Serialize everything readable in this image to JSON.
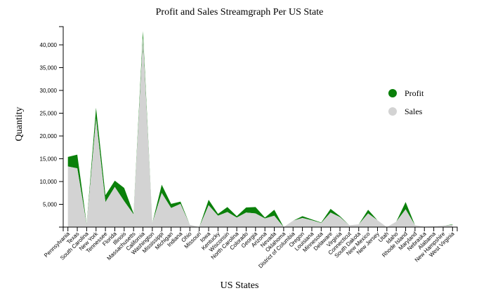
{
  "chart_data": {
    "type": "area",
    "title": "Profit and Sales Streamgraph Per US State",
    "xlabel": "US States",
    "ylabel": "Quantity",
    "ylim": [
      0,
      44000
    ],
    "yticks": [
      5000,
      10000,
      15000,
      20000,
      25000,
      30000,
      35000,
      40000
    ],
    "ytick_labels": [
      "5,000",
      "10,000",
      "15,000",
      "20,000",
      "25,000",
      "30,000",
      "35,000",
      "40,000"
    ],
    "grid": false,
    "legend_position": "right",
    "colors": {
      "Profit": "#0a800a",
      "Sales": "#d3d3d3"
    },
    "categories": [
      "Pennsylvania",
      "Texas",
      "South Carolina",
      "New York",
      "Tennessee",
      "Florida",
      "Illinois",
      "Massachusetts",
      "California",
      "Washington",
      "Mississippi",
      "Michigan",
      "Indiana",
      "Ohio",
      "Missouri",
      "Iowa",
      "Kentucky",
      "Wisconsin",
      "North Carolina",
      "Colorado",
      "Georgia",
      "Arizona",
      "Nevada",
      "Oklahoma",
      "District of Columbia",
      "Oregon",
      "Louisiana",
      "Minnesota",
      "Delaware",
      "Virginia",
      "Connecticut",
      "South Dakota",
      "New Mexico",
      "New Jersey",
      "Utah",
      "Idaho",
      "Rhode Island",
      "Maryland",
      "Nebraska",
      "Alabama",
      "New Hampshire",
      "West Virginia"
    ],
    "series": [
      {
        "name": "Sales",
        "values": [
          13300,
          12900,
          600,
          23800,
          5500,
          8800,
          5700,
          2800,
          41500,
          900,
          7500,
          4200,
          5100,
          500,
          0,
          4800,
          2500,
          3300,
          2100,
          3200,
          3000,
          1900,
          2500,
          0,
          1400,
          2000,
          1500,
          900,
          3200,
          2200,
          400,
          600,
          3000,
          1500,
          0,
          1200,
          3900,
          400,
          100,
          200,
          300,
          500
        ]
      },
      {
        "name": "Profit",
        "values": [
          2100,
          3000,
          100,
          2400,
          1500,
          1400,
          2900,
          200,
          1500,
          0,
          1800,
          900,
          500,
          0,
          0,
          1200,
          400,
          1100,
          300,
          1100,
          1400,
          200,
          1300,
          0,
          0,
          400,
          200,
          100,
          800,
          200,
          0,
          0,
          800,
          0,
          0,
          0,
          1600,
          0,
          0,
          0,
          0,
          100
        ]
      }
    ]
  }
}
